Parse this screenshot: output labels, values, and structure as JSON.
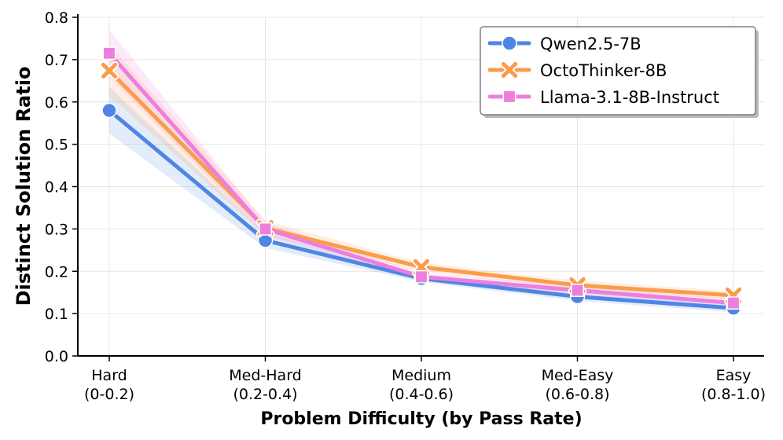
{
  "chart_data": {
    "type": "line",
    "xlabel": "Problem Difficulty (by Pass Rate)",
    "ylabel": "Distinct Solution Ratio",
    "categories": [
      [
        "Hard",
        "(0-0.2)"
      ],
      [
        "Med-Hard",
        "(0.2-0.4)"
      ],
      [
        "Medium",
        "(0.4-0.6)"
      ],
      [
        "Med-Easy",
        "(0.6-0.8)"
      ],
      [
        "Easy",
        "(0.8-1.0)"
      ]
    ],
    "ylim": [
      0,
      0.8
    ],
    "yticks": [
      "0.0",
      "0.1",
      "0.2",
      "0.3",
      "0.4",
      "0.5",
      "0.6",
      "0.7",
      "0.8"
    ],
    "grid": true,
    "legend_position": "top-right",
    "series": [
      {
        "name": "Qwen2.5-7B",
        "marker": "circle",
        "color": "#4f86e3",
        "values": [
          0.58,
          0.273,
          0.183,
          0.14,
          0.113
        ],
        "band_low": [
          0.525,
          0.255,
          0.175,
          0.13,
          0.103
        ],
        "band_high": [
          0.635,
          0.29,
          0.192,
          0.15,
          0.123
        ]
      },
      {
        "name": "OctoThinker-8B",
        "marker": "x",
        "color": "#f99d4b",
        "values": [
          0.674,
          0.302,
          0.21,
          0.167,
          0.143
        ],
        "band_low": [
          0.615,
          0.285,
          0.2,
          0.157,
          0.133
        ],
        "band_high": [
          0.735,
          0.32,
          0.22,
          0.178,
          0.153
        ]
      },
      {
        "name": "Llama-3.1-8B-Instruct",
        "marker": "square",
        "color": "#ec7fde",
        "values": [
          0.715,
          0.3,
          0.187,
          0.155,
          0.125
        ],
        "band_low": [
          0.66,
          0.285,
          0.177,
          0.145,
          0.115
        ],
        "band_high": [
          0.77,
          0.315,
          0.197,
          0.165,
          0.135
        ]
      }
    ]
  }
}
